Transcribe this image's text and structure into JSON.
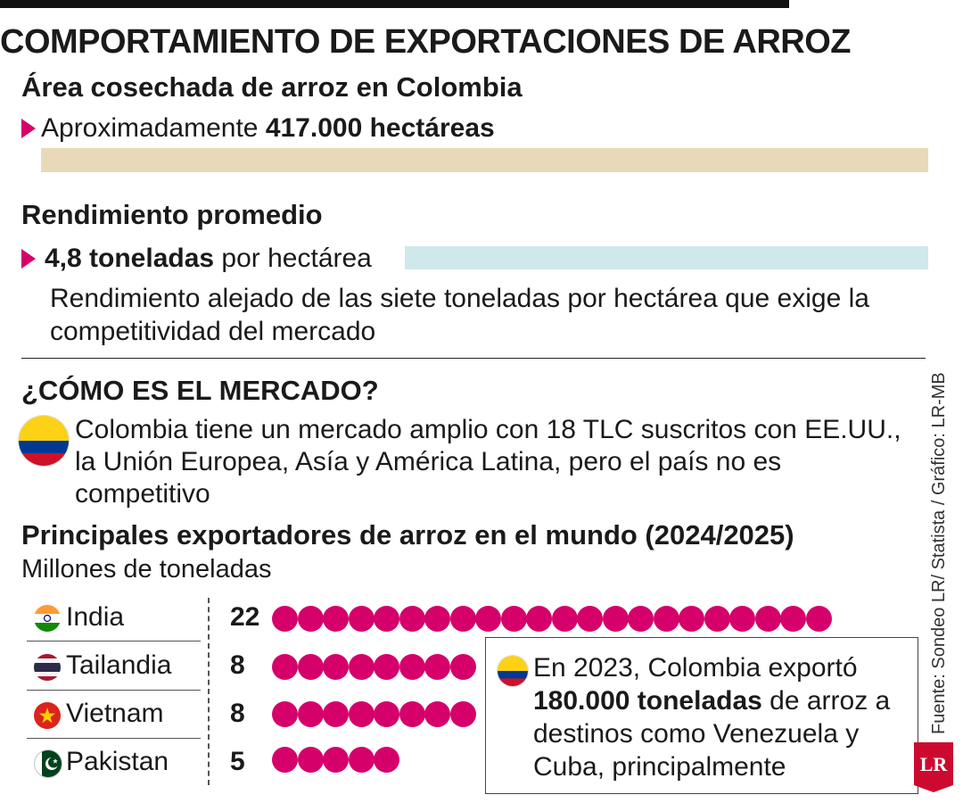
{
  "title": "COMPORTAMIENTO DE EXPORTACIONES DE ARROZ",
  "area": {
    "heading": "Área cosechada de arroz en Colombia",
    "prefix": "Aproximadamente",
    "value": "417.000 hectáreas",
    "bar_color": "#e8d9b8"
  },
  "yield": {
    "heading": "Rendimiento promedio",
    "value": "4,8 toneladas",
    "suffix": "por hectárea",
    "bar_color": "#cfe8ec",
    "note": "Rendimiento alejado de las siete toneladas por hectárea que exige la competitividad del mercado"
  },
  "market": {
    "heading": "¿CÓMO ES EL MERCADO?",
    "text": "Colombia tiene un mercado amplio con 18 TLC suscritos con EE.UU., la Unión Europea, Asía y América Latina, pero el país no es competitivo"
  },
  "exporters": {
    "heading": "Principales exportadores de arroz en el mundo (2024/2025)",
    "unit": "Millones de toneladas",
    "dot_color": "#d6006b",
    "rows": [
      {
        "country": "India",
        "value": "22",
        "count": 22,
        "flag": "india-flag-icon"
      },
      {
        "country": "Tailandia",
        "value": "8",
        "count": 8,
        "flag": "thailand-flag-icon"
      },
      {
        "country": "Vietnam",
        "value": "8",
        "count": 8,
        "flag": "vietnam-flag-icon"
      },
      {
        "country": "Pakistan",
        "value": "5",
        "count": 5,
        "flag": "pakistan-flag-icon"
      }
    ]
  },
  "callout": {
    "text_1": "En 2023, Colombia exportó",
    "bold": "180.000 toneladas",
    "text_2": "de arroz a destinos como Venezuela y Cuba, principalmente"
  },
  "source": "Fuente: Sondeo LR/ Statista / Gráfico: LR-MB",
  "logo": "LR",
  "accent": "#d6006b"
}
